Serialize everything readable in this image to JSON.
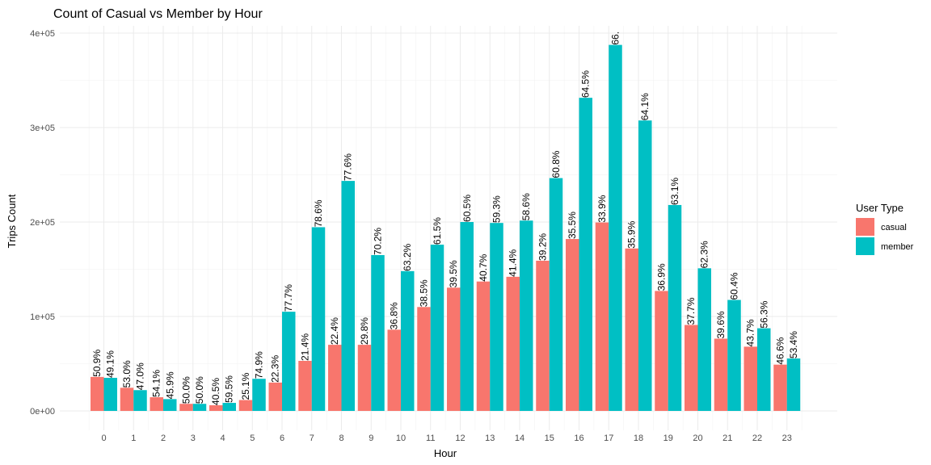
{
  "chart_data": {
    "type": "bar",
    "title": "Count of Casual vs Member by Hour",
    "xlabel": "Hour",
    "ylabel": "Trips Count",
    "legend_title": "User Type",
    "legend_position": "right",
    "grid": true,
    "ylim": [
      0,
      400000
    ],
    "y_ticks": [
      "0e+00",
      "1e+05",
      "2e+05",
      "3e+05",
      "4e+05"
    ],
    "categories": [
      "0",
      "1",
      "2",
      "3",
      "4",
      "5",
      "6",
      "7",
      "8",
      "9",
      "10",
      "11",
      "12",
      "13",
      "14",
      "15",
      "16",
      "17",
      "18",
      "19",
      "20",
      "21",
      "22",
      "23"
    ],
    "series": [
      {
        "name": "casual",
        "color": "#F8766D",
        "values": [
          36000,
          24500,
          14500,
          7500,
          6000,
          11500,
          30000,
          53000,
          70000,
          70000,
          86000,
          110000,
          130500,
          137000,
          142000,
          159000,
          182000,
          199500,
          172000,
          127000,
          91000,
          76500,
          68000,
          49000
        ],
        "labels": [
          "50.9%",
          "53.0%",
          "54.1%",
          "50.0%",
          "40.5%",
          "25.1%",
          "22.3%",
          "21.4%",
          "22.4%",
          "29.8%",
          "36.8%",
          "38.5%",
          "39.5%",
          "40.7%",
          "41.4%",
          "39.2%",
          "35.5%",
          "33.9%",
          "35.9%",
          "36.9%",
          "37.7%",
          "39.6%",
          "43.7%",
          "46.6%"
        ]
      },
      {
        "name": "member",
        "color": "#00BFC4",
        "values": [
          35000,
          22000,
          12500,
          7500,
          8500,
          34000,
          105000,
          194500,
          243500,
          165000,
          148000,
          176000,
          200000,
          199000,
          201500,
          246500,
          331500,
          387500,
          307500,
          218000,
          151000,
          117500,
          87500,
          55500
        ],
        "labels": [
          "49.1%",
          "47.0%",
          "45.9%",
          "50.0%",
          "59.5%",
          "74.9%",
          "77.7%",
          "78.6%",
          "77.6%",
          "70.2%",
          "63.2%",
          "61.5%",
          "60.5%",
          "59.3%",
          "58.6%",
          "60.8%",
          "64.5%",
          "66.",
          "64.1%",
          "63.1%",
          "62.3%",
          "60.4%",
          "56.3%",
          "53.4%"
        ]
      }
    ]
  }
}
